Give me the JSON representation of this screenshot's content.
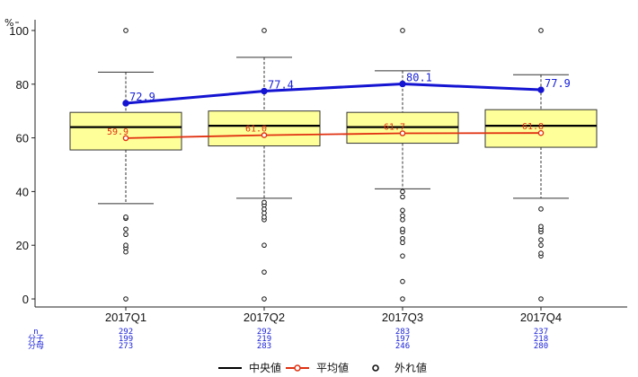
{
  "chart_data": {
    "type": "box",
    "y_unit": "%",
    "ylim": [
      -3,
      104
    ],
    "y_ticks": [
      0,
      20,
      40,
      60,
      80,
      100
    ],
    "categories": [
      "2017Q1",
      "2017Q2",
      "2017Q3",
      "2017Q4"
    ],
    "boxes": [
      {
        "q1": 55.5,
        "median": 64,
        "q3": 69.5,
        "whisker_low": 35.5,
        "whisker_high": 84.5,
        "outliers": [
          0,
          17.5,
          19,
          20,
          24,
          26,
          30,
          30.5,
          100
        ]
      },
      {
        "q1": 57,
        "median": 64.5,
        "q3": 70,
        "whisker_low": 37.5,
        "whisker_high": 90,
        "outliers": [
          0,
          10,
          20,
          29.5,
          30.5,
          32,
          33.5,
          35,
          36,
          100
        ]
      },
      {
        "q1": 58,
        "median": 64,
        "q3": 69.5,
        "whisker_low": 41,
        "whisker_high": 85,
        "outliers": [
          0,
          6.5,
          16,
          21,
          22.5,
          25,
          26,
          29.5,
          31,
          33,
          38,
          40,
          100
        ]
      },
      {
        "q1": 56.5,
        "median": 64.5,
        "q3": 70.5,
        "whisker_low": 37.5,
        "whisker_high": 83.5,
        "outliers": [
          0,
          16,
          17,
          20,
          22,
          25,
          26,
          27,
          33.5,
          100
        ]
      }
    ],
    "series": [
      {
        "name": "",
        "values": [
          72.9,
          77.4,
          80.1,
          77.9
        ],
        "labels": [
          "72.9",
          "77.4",
          "80.1",
          "77.9"
        ],
        "color": "#1414d2"
      },
      {
        "name": "平均値",
        "values": [
          59.9,
          61.0,
          61.7,
          61.8
        ],
        "labels": [
          "59.9",
          "61.0",
          "61.7",
          "61.8"
        ],
        "color": "#e03010"
      }
    ],
    "counts": {
      "row_labels": [
        "n",
        "分子",
        "分母"
      ],
      "values": [
        [
          "292",
          "199",
          "273"
        ],
        [
          "292",
          "219",
          "283"
        ],
        [
          "283",
          "197",
          "246"
        ],
        [
          "237",
          "218",
          "280"
        ]
      ]
    },
    "legend": {
      "position": "bottom",
      "items": [
        {
          "label": "中央値",
          "kind": "median-line"
        },
        {
          "label": "平均値",
          "kind": "mean-line"
        },
        {
          "label": "外れ値",
          "kind": "outlier"
        }
      ]
    },
    "colors": {
      "box_fill": "#ffff99",
      "box_stroke": "#333333"
    }
  }
}
